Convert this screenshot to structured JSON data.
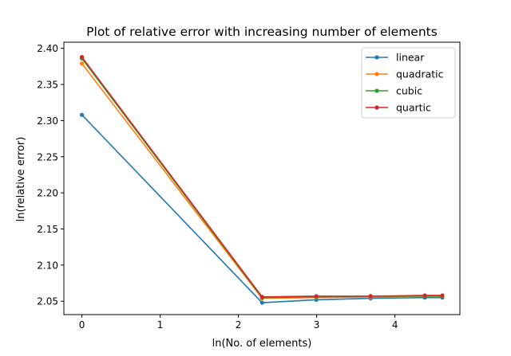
{
  "chart_data": {
    "type": "line",
    "title": "Plot of relative error with increasing number of elements",
    "xlabel": "ln(No. of elements)",
    "ylabel": "ln(relative error)",
    "xlim": [
      -0.23,
      4.83
    ],
    "ylim": [
      2.0315,
      2.4085
    ],
    "xticks": [
      0,
      1,
      2,
      3,
      4
    ],
    "yticks": [
      2.05,
      2.1,
      2.15,
      2.2,
      2.25,
      2.3,
      2.35,
      2.4
    ],
    "ytick_labels": [
      "2.05",
      "2.10",
      "2.15",
      "2.20",
      "2.25",
      "2.30",
      "2.35",
      "2.40"
    ],
    "xtick_labels": [
      "0",
      "1",
      "2",
      "3",
      "4"
    ],
    "legend_position": "top-right",
    "grid": false,
    "x": [
      0,
      2.3026,
      2.9957,
      3.6889,
      4.382,
      4.6052
    ],
    "series": [
      {
        "name": "linear",
        "color": "#1f77b4",
        "values": [
          2.308,
          2.048,
          2.052,
          2.054,
          2.055,
          2.055
        ]
      },
      {
        "name": "quadratic",
        "color": "#ff7f0e",
        "values": [
          2.379,
          2.054,
          2.055,
          2.056,
          2.057,
          2.057
        ]
      },
      {
        "name": "cubic",
        "color": "#2ca02c",
        "values": [
          2.386,
          2.055,
          2.056,
          2.057,
          2.057,
          2.057
        ]
      },
      {
        "name": "quartic",
        "color": "#d62728",
        "values": [
          2.388,
          2.056,
          2.057,
          2.057,
          2.058,
          2.058
        ]
      }
    ]
  }
}
